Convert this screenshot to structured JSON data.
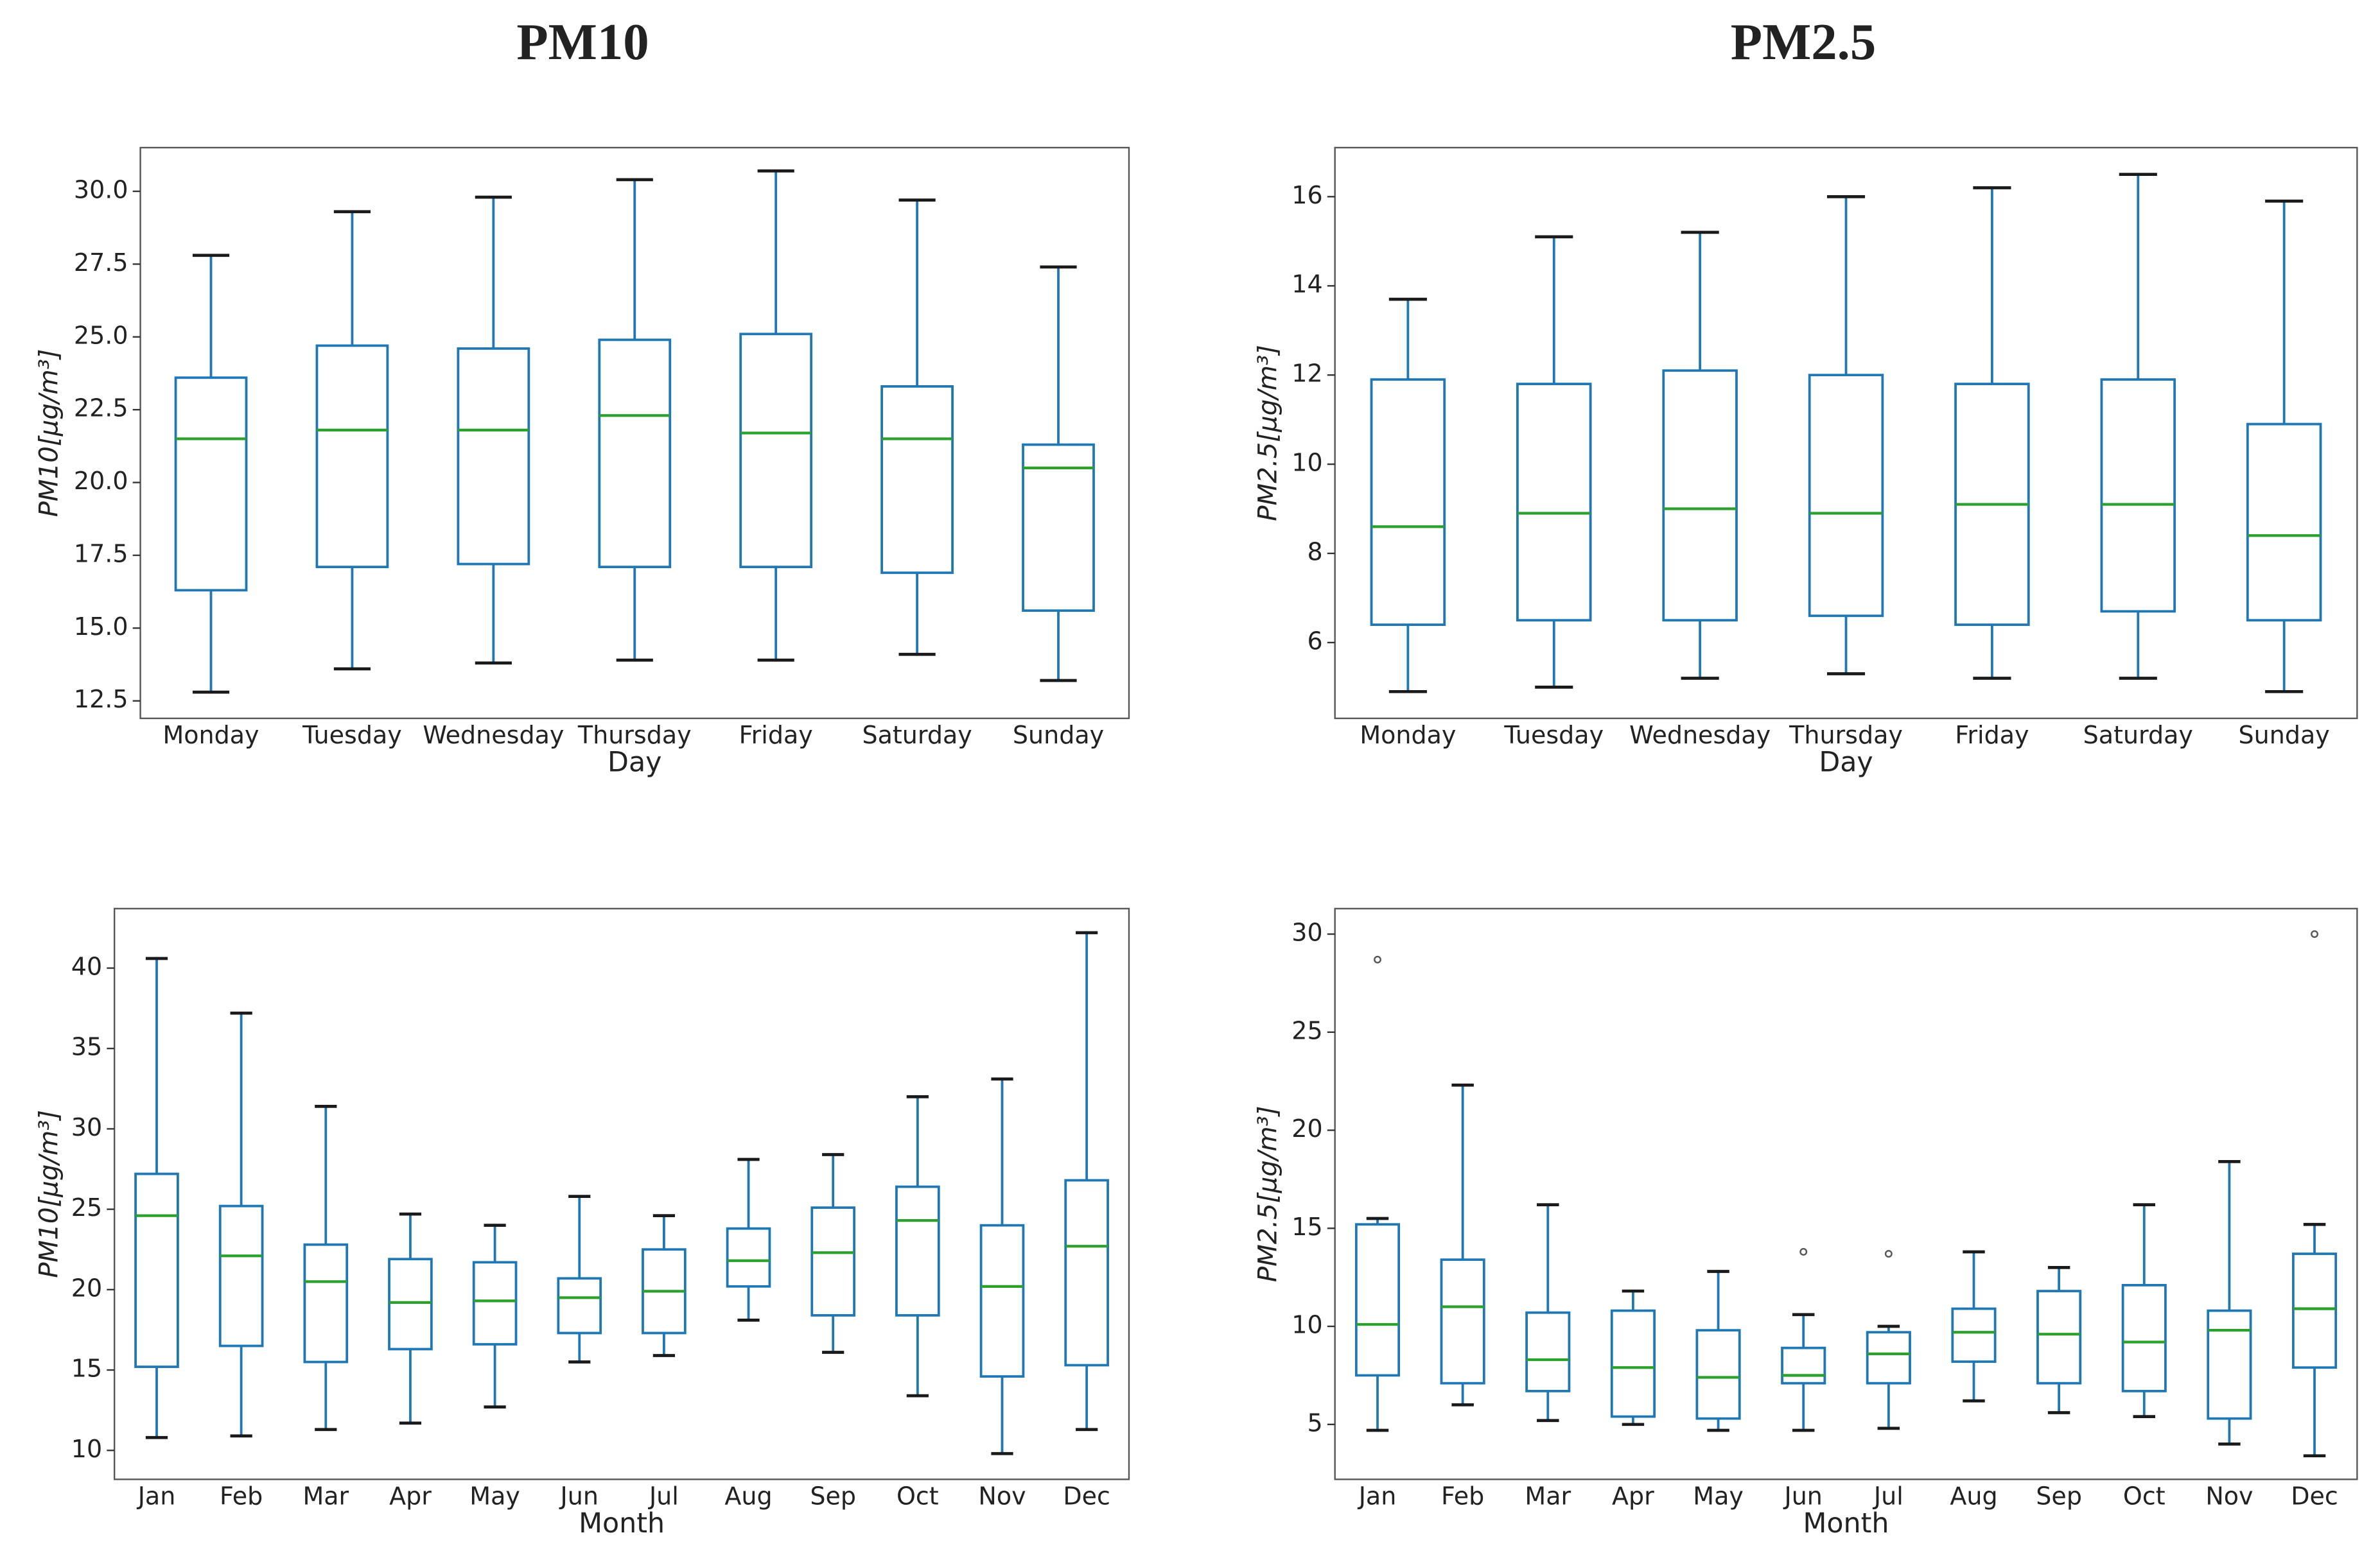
{
  "column_titles": [
    "PM10",
    "PM2.5"
  ],
  "chart_data": [
    {
      "type": "box",
      "x_label": "Day",
      "y_label": "PM10[μg/m³]",
      "color": "#1f77b4",
      "median_color": "#2ca02c",
      "categories": [
        "Monday",
        "Tuesday",
        "Wednesday",
        "Thursday",
        "Friday",
        "Saturday",
        "Sunday"
      ],
      "boxes": [
        {
          "whislo": 12.8,
          "q1": 16.3,
          "med": 21.5,
          "q3": 23.6,
          "whishi": 27.8
        },
        {
          "whislo": 13.6,
          "q1": 17.1,
          "med": 21.8,
          "q3": 24.7,
          "whishi": 29.3
        },
        {
          "whislo": 13.8,
          "q1": 17.2,
          "med": 21.8,
          "q3": 24.6,
          "whishi": 29.8
        },
        {
          "whislo": 13.9,
          "q1": 17.1,
          "med": 22.3,
          "q3": 24.9,
          "whishi": 30.4
        },
        {
          "whislo": 13.9,
          "q1": 17.1,
          "med": 21.7,
          "q3": 25.1,
          "whishi": 30.7
        },
        {
          "whislo": 14.1,
          "q1": 16.9,
          "med": 21.5,
          "q3": 23.3,
          "whishi": 29.7
        },
        {
          "whislo": 13.2,
          "q1": 15.6,
          "med": 20.5,
          "q3": 21.3,
          "whishi": 27.4
        }
      ],
      "ylim": [
        11.9,
        31.5
      ],
      "yticks": [
        12.5,
        {
          "value": 15,
          "label": "15.0"
        },
        17.5,
        {
          "value": 20,
          "label": "20.0"
        },
        22.5,
        {
          "value": 25,
          "label": "25.0"
        },
        27.5,
        {
          "value": 30,
          "label": "30.0"
        }
      ]
    },
    {
      "type": "box",
      "x_label": "Day",
      "y_label": "PM2.5[μg/m³]",
      "color": "#1f77b4",
      "median_color": "#2ca02c",
      "categories": [
        "Monday",
        "Tuesday",
        "Wednesday",
        "Thursday",
        "Friday",
        "Saturday",
        "Sunday"
      ],
      "boxes": [
        {
          "whislo": 4.9,
          "q1": 6.4,
          "med": 8.6,
          "q3": 11.9,
          "whishi": 13.7
        },
        {
          "whislo": 5.0,
          "q1": 6.5,
          "med": 8.9,
          "q3": 11.8,
          "whishi": 15.1
        },
        {
          "whislo": 5.2,
          "q1": 6.5,
          "med": 9.0,
          "q3": 12.1,
          "whishi": 15.2
        },
        {
          "whislo": 5.3,
          "q1": 6.6,
          "med": 8.9,
          "q3": 12.0,
          "whishi": 16.0
        },
        {
          "whislo": 5.2,
          "q1": 6.4,
          "med": 9.1,
          "q3": 11.8,
          "whishi": 16.2
        },
        {
          "whislo": 5.2,
          "q1": 6.7,
          "med": 9.1,
          "q3": 11.9,
          "whishi": 16.5
        },
        {
          "whislo": 4.9,
          "q1": 6.5,
          "med": 8.4,
          "q3": 10.9,
          "whishi": 15.9
        }
      ],
      "ylim": [
        4.3,
        17.1
      ],
      "yticks": [
        6,
        8,
        10,
        12,
        14,
        16
      ]
    },
    {
      "type": "box",
      "x_label": "Month",
      "y_label": "PM10[μg/m³]",
      "color": "#1f77b4",
      "median_color": "#2ca02c",
      "categories": [
        "Jan",
        "Feb",
        "Mar",
        "Apr",
        "May",
        "Jun",
        "Jul",
        "Aug",
        "Sep",
        "Oct",
        "Nov",
        "Dec"
      ],
      "boxes": [
        {
          "whislo": 10.8,
          "q1": 15.2,
          "med": 24.6,
          "q3": 27.2,
          "whishi": 40.6
        },
        {
          "whislo": 10.9,
          "q1": 16.5,
          "med": 22.1,
          "q3": 25.2,
          "whishi": 37.2
        },
        {
          "whislo": 11.3,
          "q1": 15.5,
          "med": 20.5,
          "q3": 22.8,
          "whishi": 31.4
        },
        {
          "whislo": 11.7,
          "q1": 16.3,
          "med": 19.2,
          "q3": 21.9,
          "whishi": 24.7
        },
        {
          "whislo": 12.7,
          "q1": 16.6,
          "med": 19.3,
          "q3": 21.7,
          "whishi": 24.0
        },
        {
          "whislo": 15.5,
          "q1": 17.3,
          "med": 19.5,
          "q3": 20.7,
          "whishi": 25.8
        },
        {
          "whislo": 15.9,
          "q1": 17.3,
          "med": 19.9,
          "q3": 22.5,
          "whishi": 24.6
        },
        {
          "whislo": 18.1,
          "q1": 20.2,
          "med": 21.8,
          "q3": 23.8,
          "whishi": 28.1
        },
        {
          "whislo": 16.1,
          "q1": 18.4,
          "med": 22.3,
          "q3": 25.1,
          "whishi": 28.4
        },
        {
          "whislo": 13.4,
          "q1": 18.4,
          "med": 24.3,
          "q3": 26.4,
          "whishi": 32.0
        },
        {
          "whislo": 9.8,
          "q1": 14.6,
          "med": 20.2,
          "q3": 24.0,
          "whishi": 33.1
        },
        {
          "whislo": 11.3,
          "q1": 15.3,
          "med": 22.7,
          "q3": 26.8,
          "whishi": 42.2
        }
      ],
      "ylim": [
        8.2,
        43.7
      ],
      "yticks": [
        10,
        15,
        20,
        25,
        30,
        35,
        40
      ]
    },
    {
      "type": "box",
      "x_label": "Month",
      "y_label": "PM2.5[μg/m³]",
      "color": "#1f77b4",
      "median_color": "#2ca02c",
      "categories": [
        "Jan",
        "Feb",
        "Mar",
        "Apr",
        "May",
        "Jun",
        "Jul",
        "Aug",
        "Sep",
        "Oct",
        "Nov",
        "Dec"
      ],
      "boxes": [
        {
          "whislo": 4.7,
          "q1": 7.5,
          "med": 10.1,
          "q3": 15.2,
          "whishi": 15.5,
          "outliers": [
            28.7
          ]
        },
        {
          "whislo": 6.0,
          "q1": 7.1,
          "med": 11.0,
          "q3": 13.4,
          "whishi": 22.3
        },
        {
          "whislo": 5.2,
          "q1": 6.7,
          "med": 8.3,
          "q3": 10.7,
          "whishi": 16.2
        },
        {
          "whislo": 5.0,
          "q1": 5.4,
          "med": 7.9,
          "q3": 10.8,
          "whishi": 11.8
        },
        {
          "whislo": 4.7,
          "q1": 5.3,
          "med": 7.4,
          "q3": 9.8,
          "whishi": 12.8
        },
        {
          "whislo": 4.7,
          "q1": 7.1,
          "med": 7.5,
          "q3": 8.9,
          "whishi": 10.6,
          "outliers": [
            13.8
          ]
        },
        {
          "whislo": 4.8,
          "q1": 7.1,
          "med": 8.6,
          "q3": 9.7,
          "whishi": 10.0,
          "outliers": [
            13.7
          ]
        },
        {
          "whislo": 6.2,
          "q1": 8.2,
          "med": 9.7,
          "q3": 10.9,
          "whishi": 13.8
        },
        {
          "whislo": 5.6,
          "q1": 7.1,
          "med": 9.6,
          "q3": 11.8,
          "whishi": 13.0
        },
        {
          "whislo": 5.4,
          "q1": 6.7,
          "med": 9.2,
          "q3": 12.1,
          "whishi": 16.2
        },
        {
          "whislo": 4.0,
          "q1": 5.3,
          "med": 9.8,
          "q3": 10.8,
          "whishi": 18.4
        },
        {
          "whislo": 3.4,
          "q1": 7.9,
          "med": 10.9,
          "q3": 13.7,
          "whishi": 15.2,
          "outliers": [
            30.0
          ]
        }
      ],
      "ylim": [
        2.2,
        31.3
      ],
      "yticks": [
        5,
        10,
        15,
        20,
        25,
        30
      ]
    }
  ]
}
